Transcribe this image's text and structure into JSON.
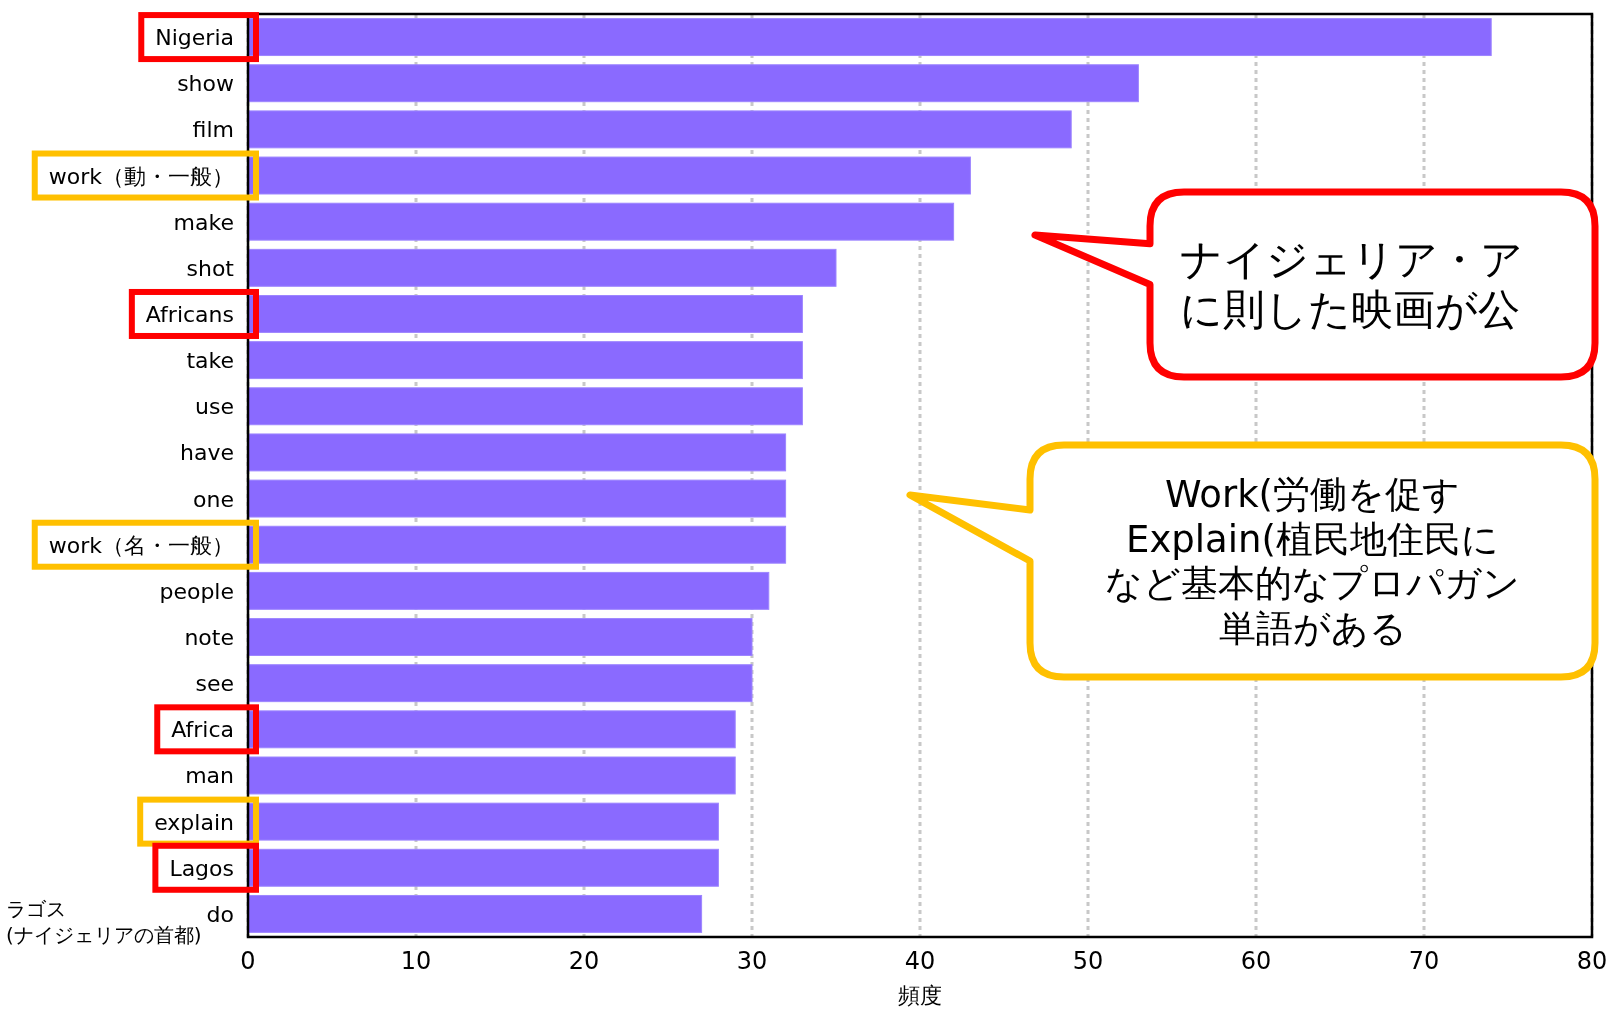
{
  "chart_data": {
    "type": "bar",
    "orientation": "horizontal",
    "xlabel": "頻度",
    "categories": [
      "Nigeria",
      "show",
      "film",
      "work（動・一般）",
      "make",
      "shot",
      "Africans",
      "take",
      "use",
      "have",
      "one",
      "work（名・一般）",
      "people",
      "note",
      "see",
      "Africa",
      "man",
      "explain",
      "Lagos",
      "do"
    ],
    "values": [
      74,
      53,
      49,
      43,
      42,
      35,
      33,
      33,
      33,
      32,
      32,
      32,
      31,
      30,
      30,
      29,
      29,
      28,
      28,
      27
    ],
    "color": "#8a6aff",
    "xlim": [
      0,
      80
    ],
    "xticks": [
      0,
      10,
      20,
      30,
      40,
      50,
      60,
      70,
      80
    ],
    "grid": "x",
    "annotations": [
      "ナイジェリア・ア",
      "に則した映画が公",
      "Work(労働を促す",
      "Explain(植民地住民に",
      "など基本的なプロパガン",
      "単語がある",
      "ラゴス",
      "(ナイジェリアの首都)"
    ]
  }
}
